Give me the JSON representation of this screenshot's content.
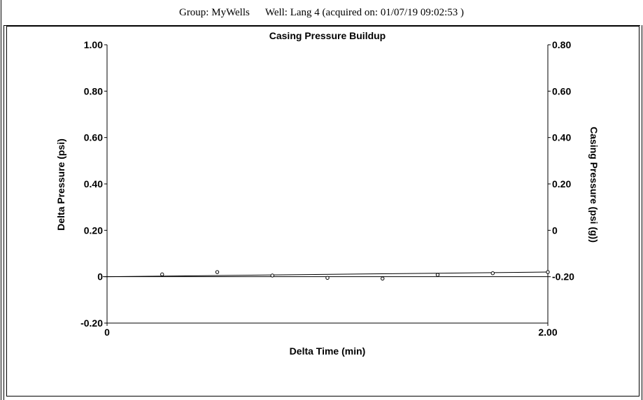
{
  "header": {
    "group": "Group: MyWells",
    "well": "Well: Lang 4 (acquired on: 01/07/19 09:02:53 )"
  },
  "chart_data": {
    "type": "scatter",
    "title": "Casing Pressure Buildup",
    "xlabel": "Delta Time (min)",
    "ylabel": "Delta Pressure (psi)",
    "y2label": "Casing Pressure (psi (g))",
    "xlim": [
      0,
      2.0
    ],
    "ylim": [
      -0.2,
      1.0
    ],
    "y2lim": [
      -0.4,
      0.8
    ],
    "x_tick_labels": [
      "0",
      "2.00"
    ],
    "y_tick_labels": [
      "1.00",
      "0.80",
      "0.60",
      "0.40",
      "0.20",
      "0",
      "-0.20"
    ],
    "y2_tick_labels": [
      "0.80",
      "0.60",
      "0.40",
      "0.20",
      "0",
      "-0.20"
    ],
    "grid": false,
    "series": [
      {
        "marker": "circle",
        "x": [
          0.25,
          0.5,
          0.75,
          1.0,
          1.25,
          1.5,
          1.75,
          2.0
        ],
        "y": [
          0.01,
          0.02,
          0.005,
          -0.005,
          -0.008,
          0.008,
          0.015,
          0.02
        ]
      }
    ],
    "baseline_y": 0,
    "trend_line": {
      "x": [
        0,
        2.0
      ],
      "y": [
        0.0,
        0.02
      ]
    }
  }
}
